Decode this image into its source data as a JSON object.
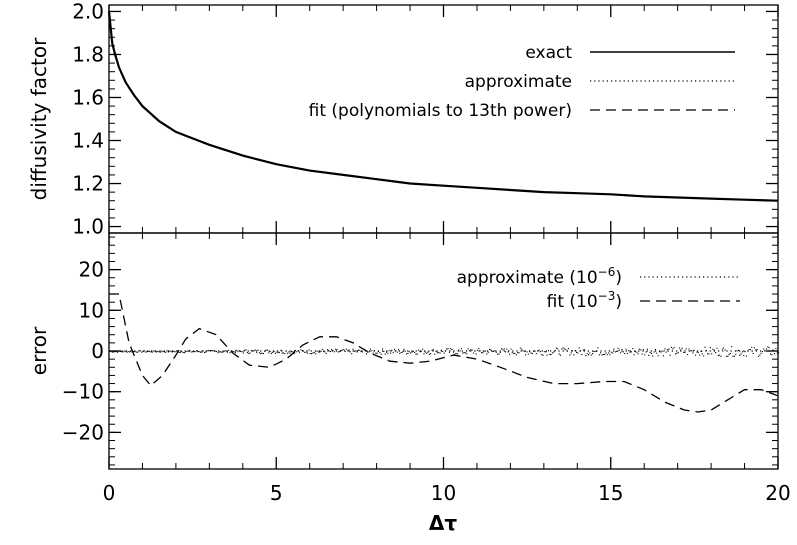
{
  "chart_data": [
    {
      "type": "line",
      "ylabel": "diffusivity factor",
      "xlim": [
        0,
        20
      ],
      "ylim": [
        0.97,
        2.03
      ],
      "yticks": [
        1.0,
        1.2,
        1.4,
        1.6,
        1.8,
        2.0
      ],
      "ytick_labels": [
        "1.0",
        "1.2",
        "1.4",
        "1.6",
        "1.8",
        "2.0"
      ],
      "legend": "top-right",
      "series": [
        {
          "name": "exact",
          "style": "solid",
          "x": [
            0,
            0.1,
            0.2,
            0.3,
            0.5,
            0.75,
            1,
            1.5,
            2,
            2.5,
            3,
            4,
            5,
            6,
            7,
            8,
            9,
            10,
            11,
            12,
            13,
            14,
            15,
            16,
            17,
            18,
            19,
            20
          ],
          "values": [
            2.0,
            1.85,
            1.79,
            1.74,
            1.67,
            1.61,
            1.56,
            1.49,
            1.44,
            1.41,
            1.38,
            1.33,
            1.29,
            1.26,
            1.24,
            1.22,
            1.2,
            1.19,
            1.18,
            1.17,
            1.16,
            1.155,
            1.15,
            1.14,
            1.135,
            1.13,
            1.125,
            1.12
          ]
        },
        {
          "name": "approximate",
          "style": "dotted",
          "x": [
            0,
            0.1,
            0.2,
            0.3,
            0.5,
            0.75,
            1,
            1.5,
            2,
            2.5,
            3,
            4,
            5,
            6,
            7,
            8,
            9,
            10,
            11,
            12,
            13,
            14,
            15,
            16,
            17,
            18,
            19,
            20
          ],
          "values": [
            2.0,
            1.85,
            1.79,
            1.74,
            1.67,
            1.61,
            1.56,
            1.49,
            1.44,
            1.41,
            1.38,
            1.33,
            1.29,
            1.26,
            1.24,
            1.22,
            1.2,
            1.19,
            1.18,
            1.17,
            1.16,
            1.155,
            1.15,
            1.14,
            1.135,
            1.13,
            1.125,
            1.12
          ]
        },
        {
          "name": "fit (polynomials to 13th power)",
          "style": "dashed",
          "x": [
            0,
            0.1,
            0.2,
            0.3,
            0.5,
            0.75,
            1,
            1.5,
            2,
            2.5,
            3,
            4,
            5,
            6,
            7,
            8,
            9,
            10,
            11,
            12,
            13,
            14,
            15,
            16,
            17,
            18,
            19,
            20
          ],
          "values": [
            2.0,
            1.85,
            1.79,
            1.74,
            1.67,
            1.61,
            1.56,
            1.49,
            1.44,
            1.41,
            1.38,
            1.33,
            1.29,
            1.26,
            1.24,
            1.22,
            1.2,
            1.19,
            1.18,
            1.17,
            1.16,
            1.155,
            1.15,
            1.14,
            1.135,
            1.13,
            1.125,
            1.12
          ]
        }
      ]
    },
    {
      "type": "line",
      "xlabel": "Δτ",
      "ylabel": "error",
      "xlim": [
        0,
        20
      ],
      "ylim": [
        -29,
        29
      ],
      "xticks": [
        0,
        5,
        10,
        15,
        20
      ],
      "xtick_labels": [
        "0",
        "5",
        "10",
        "15",
        "20"
      ],
      "yticks": [
        -20,
        -10,
        0,
        10,
        20
      ],
      "ytick_labels": [
        "−20",
        "−10",
        "0",
        "10",
        "20"
      ],
      "legend": "top-right",
      "series": [
        {
          "name": "approximate (10⁻⁶)",
          "legend_label": "approximate (10",
          "legend_exp": "−6",
          "style": "dotted",
          "x": [
            0,
            2,
            4,
            6,
            8,
            10,
            12,
            14,
            16,
            18,
            20
          ],
          "values": [
            0,
            0,
            0,
            0,
            0,
            0,
            0,
            0,
            0,
            0,
            0
          ],
          "noise": [
            0.2,
            0.3,
            0.5,
            0.6,
            0.7,
            0.8,
            0.9,
            1.0,
            1.1,
            1.2,
            1.3
          ]
        },
        {
          "name": "fit (10⁻³)",
          "legend_label": "fit (10",
          "legend_exp": "−3",
          "style": "dashed",
          "x": [
            0,
            0.3,
            0.6,
            1.0,
            1.25,
            1.6,
            2.0,
            2.3,
            2.7,
            3.2,
            3.7,
            4.2,
            4.8,
            5.3,
            5.8,
            6.3,
            6.8,
            7.3,
            7.8,
            8.4,
            9.0,
            9.6,
            10.3,
            11.0,
            11.7,
            12.5,
            13.3,
            14.0,
            14.8,
            15.4,
            16.0,
            16.6,
            17.2,
            17.6,
            18.0,
            18.5,
            19.0,
            19.5,
            20.0
          ],
          "values": [
            14,
            14,
            2,
            -6,
            -8.5,
            -6,
            -1,
            3,
            5.5,
            4,
            -0.5,
            -3.5,
            -4,
            -2,
            1.5,
            3.5,
            3.5,
            2,
            -0.5,
            -2.5,
            -3,
            -2.5,
            -1,
            -2,
            -4,
            -6.5,
            -8,
            -8,
            -7.5,
            -7.5,
            -9.5,
            -12.5,
            -14.5,
            -15,
            -14.5,
            -12,
            -9.5,
            -9.5,
            -11
          ]
        }
      ]
    }
  ]
}
